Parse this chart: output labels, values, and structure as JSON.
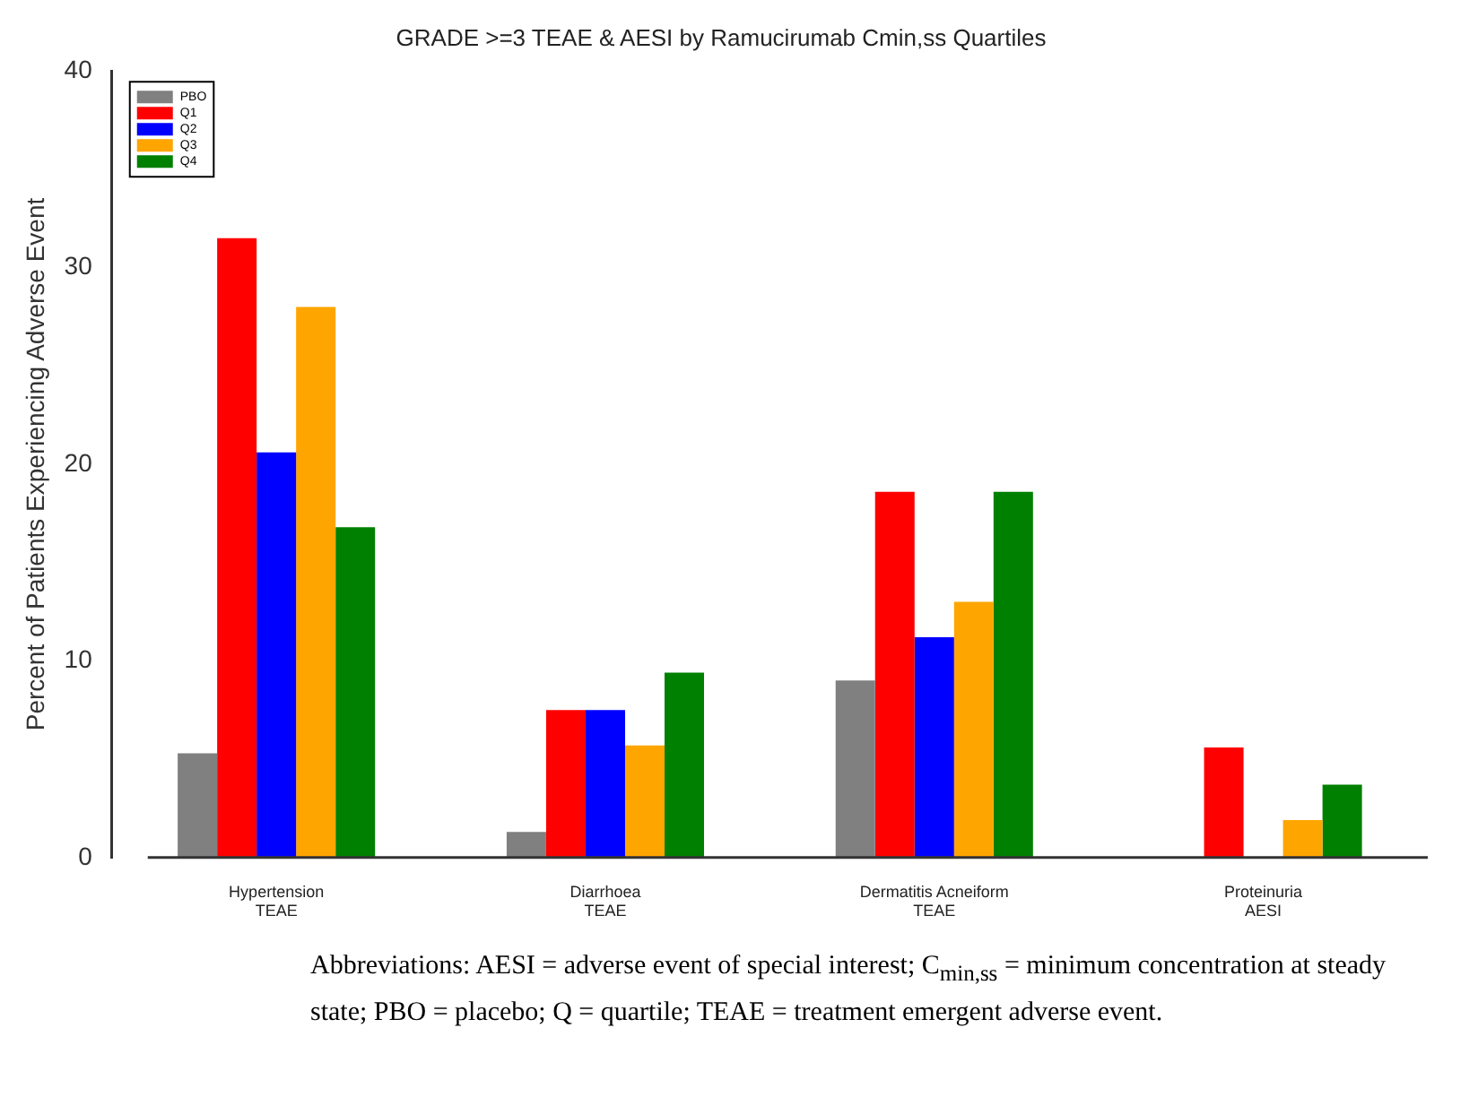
{
  "chart_data": {
    "type": "bar",
    "title": "GRADE >=3 TEAE & AESI by Ramucirumab Cmin,ss Quartiles",
    "ylabel": "Percent of Patients Experiencing Adverse Event",
    "categories": [
      "Hypertension\nTEAE",
      "Diarrhoea\nTEAE",
      "Dermatitis Acneiform\nTEAE",
      "Proteinuria\nAESI"
    ],
    "series": [
      {
        "name": "PBO",
        "color": "#808080",
        "values": [
          5.3,
          1.3,
          9.0,
          0
        ]
      },
      {
        "name": "Q1",
        "color": "#ff0000",
        "values": [
          31.5,
          7.5,
          18.6,
          5.6
        ]
      },
      {
        "name": "Q2",
        "color": "#0000ff",
        "values": [
          20.6,
          7.5,
          11.2,
          0
        ]
      },
      {
        "name": "Q3",
        "color": "#ffa500",
        "values": [
          28.0,
          5.7,
          13.0,
          1.9
        ]
      },
      {
        "name": "Q4",
        "color": "#008000",
        "values": [
          16.8,
          9.4,
          18.6,
          3.7
        ]
      }
    ],
    "ylim": [
      0,
      40
    ],
    "yticks": [
      0,
      10,
      20,
      30,
      40
    ],
    "grid": false,
    "legend": "top left",
    "annotations": [
      "Abbreviations:  AESI = adverse event of special interest; C$_{min,ss}$ = minimum concentration at steady state; PBO = placebo; Q = quartile; TEAE = treatment emergent adverse event."
    ]
  }
}
